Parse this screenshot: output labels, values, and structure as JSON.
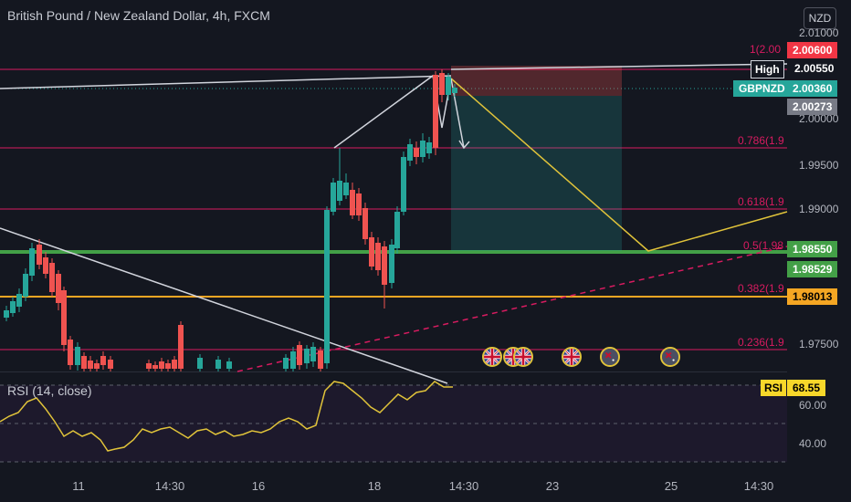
{
  "chart": {
    "title": "British Pound / New Zealand Dollar, 4h, FXCM",
    "currency_button": "NZD",
    "price_ticks": [
      "2.01000",
      "2.00000",
      "1.99500",
      "1.99000",
      "1.97500"
    ],
    "price_tags": {
      "red_tag": "2.00600",
      "high_label": "High",
      "high_value": "2.00550",
      "symbol_label": "GBPNZD",
      "symbol_value": "2.00360",
      "gray_value": "2.00273",
      "green_tag_1": "1.98550",
      "green_tag_2": "1.98529",
      "orange_tag": "1.98013"
    },
    "fib_labels": {
      "top": "1(2.00",
      "f786": "0.786(1.9",
      "f618": "0.618(1.9",
      "f5": "0.5(1.98",
      "f382": "0.382(1.9",
      "f236": "0.236(1.9"
    },
    "rsi": {
      "title": "RSI (14, close)",
      "label": "RSI",
      "value": "68.55",
      "ticks": [
        "60.00",
        "40.00"
      ]
    },
    "time_ticks": [
      "11",
      "14:30",
      "16",
      "18",
      "14:30",
      "23",
      "25",
      "14:30"
    ],
    "colors": {
      "bg": "#141720",
      "up": "#26a69a",
      "down": "#ef5350",
      "fib": "#d81b60",
      "rsi": "#e0c33a"
    }
  }
}
